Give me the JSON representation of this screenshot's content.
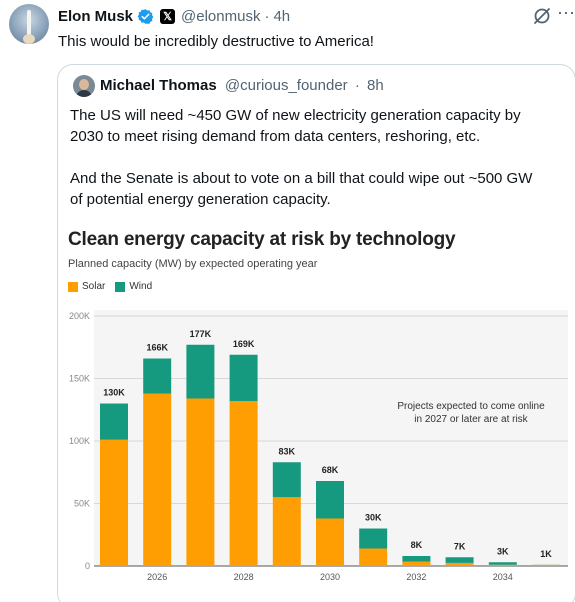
{
  "tweet": {
    "author_name": "Elon Musk",
    "author_handle": "@elonmusk",
    "separator": "·",
    "time": "4h",
    "badge_icon": "verified-badge-icon",
    "affiliate_icon": "x-logo-icon",
    "more_icon": "more-options-icon",
    "grok_icon": "grok-icon",
    "text": "This would be incredibly destructive to America!"
  },
  "quote": {
    "author_name": "Michael Thomas",
    "author_handle": "@curious_founder",
    "separator": "·",
    "time": "8h",
    "paragraphs": [
      "The US will need ~450 GW of new electricity generation capacity by",
      "2030 to meet rising demand from data centers, reshoring, etc.",
      "And the Senate is about to vote on a bill that could wipe out ~500 GW",
      "of potential energy generation capacity."
    ]
  },
  "chart_data": {
    "type": "bar",
    "stacked": true,
    "title": "Clean energy capacity at risk by technology",
    "subtitle": "Planned capacity (MW) by expected operating year",
    "categories": [
      "2025",
      "2026",
      "2027",
      "2028",
      "2029",
      "2030",
      "2031",
      "2032",
      "2033",
      "2034",
      "2035"
    ],
    "x_tick_labels": [
      "2026",
      "2028",
      "2030",
      "2032",
      "2034"
    ],
    "series": [
      {
        "name": "Solar",
        "color": "#ff9e02",
        "values": [
          101000,
          138000,
          134000,
          132000,
          55000,
          38000,
          14000,
          3500,
          2500,
          1000,
          900
        ]
      },
      {
        "name": "Wind",
        "color": "#169a7f",
        "values": [
          29000,
          28000,
          43000,
          37000,
          28000,
          30000,
          16000,
          4500,
          4500,
          2000,
          100
        ]
      }
    ],
    "totals_labels": [
      "130K",
      "166K",
      "177K",
      "169K",
      "83K",
      "68K",
      "30K",
      "8K",
      "7K",
      "3K",
      "1K"
    ],
    "y_ticks": [
      "0",
      "50K",
      "100K",
      "150K",
      "200K"
    ],
    "ylim": [
      0,
      200000
    ],
    "annotation": [
      "Projects expected to come online",
      "in 2027 or later are at risk"
    ],
    "grid": true,
    "legend_position": "top-left"
  }
}
